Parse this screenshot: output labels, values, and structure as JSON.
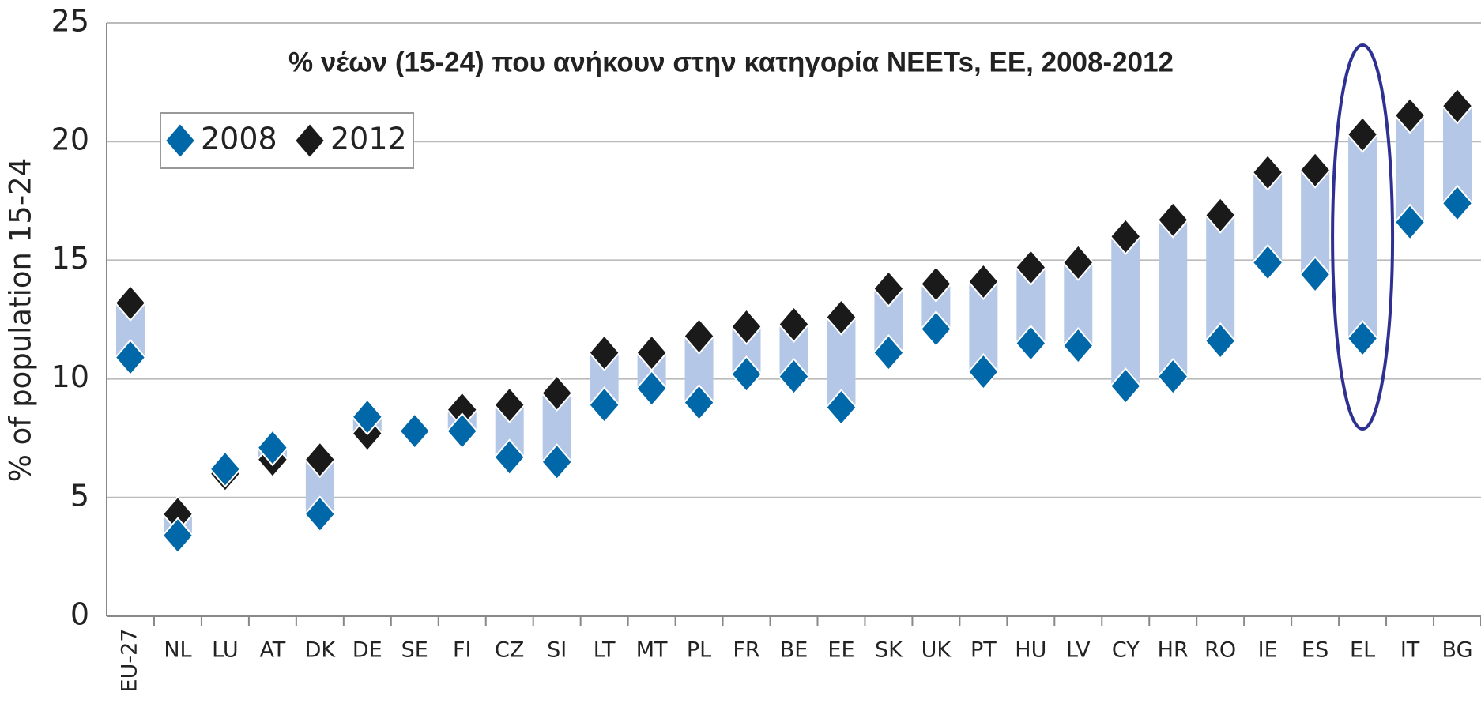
{
  "chart_data": {
    "type": "range-dot",
    "title": "% νέων  (15-24) που ανήκουν στην κατηγορία NEETs, ΕΕ, 2008-2012",
    "y_label": "% of population 15-24",
    "categories": [
      "EU-27",
      "NL",
      "LU",
      "AT",
      "DK",
      "DE",
      "SE",
      "FI",
      "CZ",
      "SI",
      "LT",
      "MT",
      "PL",
      "FR",
      "BE",
      "EE",
      "SK",
      "UK",
      "PT",
      "HU",
      "LV",
      "CY",
      "HR",
      "RO",
      "IE",
      "ES",
      "EL",
      "IT",
      "BG"
    ],
    "series": [
      {
        "name": "2008",
        "color": "#0067a8",
        "values": [
          10.9,
          3.4,
          6.2,
          7.1,
          4.3,
          8.4,
          7.8,
          7.8,
          6.7,
          6.5,
          8.9,
          9.6,
          9.0,
          10.2,
          10.1,
          8.8,
          11.1,
          12.1,
          10.3,
          11.5,
          11.4,
          9.7,
          10.1,
          11.6,
          14.9,
          14.4,
          11.7,
          16.6,
          17.4
        ]
      },
      {
        "name": "2012",
        "color": "#1a1a1a",
        "values": [
          13.2,
          4.3,
          6.0,
          6.6,
          6.6,
          7.7,
          7.8,
          8.7,
          8.9,
          9.4,
          11.1,
          11.1,
          11.8,
          12.2,
          12.3,
          12.6,
          13.8,
          14.0,
          14.1,
          14.7,
          14.9,
          16.0,
          16.7,
          16.9,
          18.7,
          18.8,
          20.3,
          21.1,
          21.5
        ]
      }
    ],
    "band_color": "#b4c7e7",
    "highlight_color": "#2e3192",
    "ylim": [
      0,
      25
    ],
    "yticks": [
      0,
      5,
      10,
      15,
      20,
      25
    ],
    "grid": true
  }
}
